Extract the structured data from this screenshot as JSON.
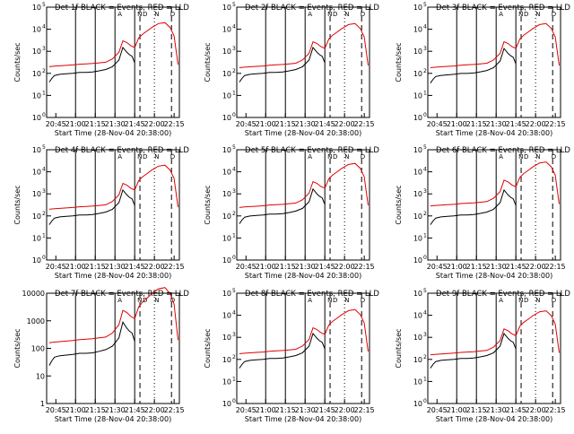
{
  "panel_titles": [
    "Det 1f BLACK = Events, RED = LLD",
    "Det 2f BLACK = Events, RED = LLD",
    "Det 3f BLACK = Events, RED = LLD",
    "Det 4f BLACK = Events, RED = LLD",
    "Det 5f BLACK = Events, RED = LLD",
    "Det 6f BLACK = Events, RED = LLD",
    "Det 7f BLACK = Events, RED = LLD",
    "Det 8f BLACK = Events, RED = LLD",
    "Det 9f BLACK = Events, RED = LLD"
  ],
  "x_axis": {
    "label": "Start Time (28-Nov-04 20:38:00)",
    "ticks": [
      "20:45",
      "21:00",
      "21:15",
      "21:30",
      "21:45",
      "22:00",
      "22:15"
    ]
  },
  "y_axis": {
    "label": "Counts/sec",
    "ticks": [
      "10^0",
      "10^1",
      "10^2",
      "10^3",
      "10^4",
      "10^5"
    ],
    "ticks_linear_panel7": [
      "1",
      "10",
      "100",
      "1000",
      "10000"
    ]
  },
  "marker_letters": [
    "A",
    "N",
    "D",
    "N",
    "D"
  ],
  "colors": {
    "events": "#000000",
    "lld": "#e00000",
    "axes": "#000000",
    "background": "#ffffff"
  },
  "chart_data": {
    "type": "line",
    "scale": "log",
    "x_unit": "minutes since 20:38:00",
    "xlim": [
      0,
      101
    ],
    "ylim": [
      1,
      100000
    ],
    "ylim_panel7": [
      1,
      10000
    ],
    "solid_lines_x": [
      0,
      22,
      37,
      52,
      67
    ],
    "dashed_lines_x": [
      71,
      95
    ],
    "dotted_lines_x": [
      82
    ],
    "series": [
      {
        "name": "Events",
        "color": "#000000",
        "x": [
          2,
          4,
          6,
          10,
          15,
          20,
          25,
          30,
          35,
          40,
          45,
          50,
          55,
          58,
          61,
          63,
          65,
          67
        ],
        "y": [
          40,
          60,
          80,
          90,
          95,
          100,
          110,
          110,
          115,
          130,
          150,
          200,
          400,
          1500,
          900,
          700,
          600,
          300
        ]
      },
      {
        "name": "LLD",
        "color": "#e00000",
        "x": [
          2,
          5,
          10,
          15,
          20,
          25,
          30,
          35,
          40,
          45,
          50,
          55,
          58,
          61,
          64,
          67,
          70,
          73,
          76,
          80,
          85,
          90,
          94,
          97,
          100
        ],
        "y": [
          200,
          210,
          220,
          230,
          240,
          260,
          270,
          280,
          300,
          320,
          450,
          900,
          3000,
          2500,
          1800,
          1500,
          4000,
          6000,
          8000,
          12000,
          18000,
          20000,
          12000,
          5000,
          250
        ]
      }
    ]
  }
}
